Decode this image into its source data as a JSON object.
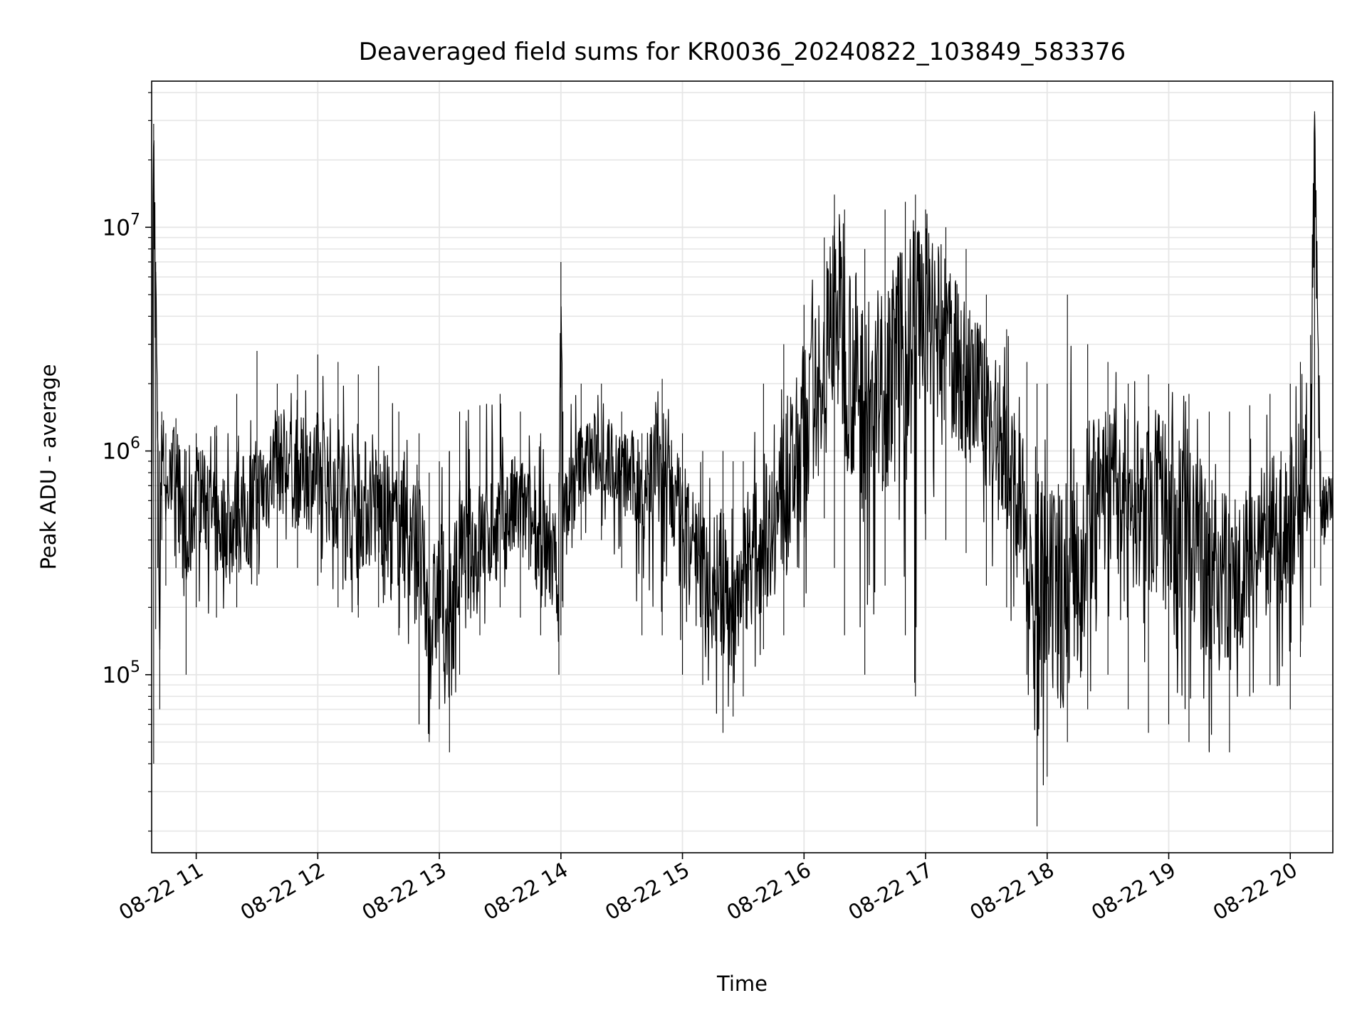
{
  "chart_data": {
    "type": "line",
    "title": "Deaveraged field sums for KR0036_20240822_103849_583376",
    "xlabel": "Time",
    "ylabel": "Peak ADU - average",
    "x_tick_labels": [
      "08-22 11",
      "08-22 12",
      "08-22 13",
      "08-22 14",
      "08-22 15",
      "08-22 16",
      "08-22 17",
      "08-22 18",
      "08-22 19",
      "08-22 20"
    ],
    "x_ticks": [
      "2024-08-22 11:00",
      "2024-08-22 12:00",
      "2024-08-22 13:00",
      "2024-08-22 14:00",
      "2024-08-22 15:00",
      "2024-08-22 16:00",
      "2024-08-22 17:00",
      "2024-08-22 18:00",
      "2024-08-22 19:00",
      "2024-08-22 20:00"
    ],
    "xlim": [
      "2024-08-22 10:38",
      "2024-08-22 20:21"
    ],
    "y_scale": "log",
    "y_major_ticks": [
      100000,
      1000000,
      10000000
    ],
    "y_tick_labels": [
      {
        "base": "10",
        "exp": "5"
      },
      {
        "base": "10",
        "exp": "6"
      },
      {
        "base": "10",
        "exp": "7"
      }
    ],
    "ylim": [
      16000,
      45000000
    ],
    "grid": true,
    "line_color": "#000000",
    "grid_color": "#e6e6e6",
    "series": [
      {
        "x": [
          "2024-08-22 10:38",
          "2024-08-22 10:39",
          "2024-08-22 10:40",
          "2024-08-22 10:41",
          "2024-08-22 10:42",
          "2024-08-22 10:43",
          "2024-08-22 10:45",
          "2024-08-22 10:50",
          "2024-08-22 10:55",
          "2024-08-22 11:00",
          "2024-08-22 11:10",
          "2024-08-22 11:20",
          "2024-08-22 11:30",
          "2024-08-22 11:40",
          "2024-08-22 11:50",
          "2024-08-22 12:00",
          "2024-08-22 12:10",
          "2024-08-22 12:20",
          "2024-08-22 12:30",
          "2024-08-22 12:40",
          "2024-08-22 12:50",
          "2024-08-22 12:55",
          "2024-08-22 13:00",
          "2024-08-22 13:05",
          "2024-08-22 13:10",
          "2024-08-22 13:20",
          "2024-08-22 13:30",
          "2024-08-22 13:40",
          "2024-08-22 13:50",
          "2024-08-22 13:59",
          "2024-08-22 14:00",
          "2024-08-22 14:01",
          "2024-08-22 14:10",
          "2024-08-22 14:20",
          "2024-08-22 14:30",
          "2024-08-22 14:40",
          "2024-08-22 14:50",
          "2024-08-22 15:00",
          "2024-08-22 15:10",
          "2024-08-22 15:20",
          "2024-08-22 15:25",
          "2024-08-22 15:30",
          "2024-08-22 15:40",
          "2024-08-22 15:50",
          "2024-08-22 16:00",
          "2024-08-22 16:10",
          "2024-08-22 16:15",
          "2024-08-22 16:20",
          "2024-08-22 16:30",
          "2024-08-22 16:40",
          "2024-08-22 16:50",
          "2024-08-22 16:55",
          "2024-08-22 17:00",
          "2024-08-22 17:10",
          "2024-08-22 17:20",
          "2024-08-22 17:30",
          "2024-08-22 17:40",
          "2024-08-22 17:50",
          "2024-08-22 17:55",
          "2024-08-22 18:00",
          "2024-08-22 18:10",
          "2024-08-22 18:20",
          "2024-08-22 18:30",
          "2024-08-22 18:40",
          "2024-08-22 18:50",
          "2024-08-22 19:00",
          "2024-08-22 19:10",
          "2024-08-22 19:20",
          "2024-08-22 19:30",
          "2024-08-22 19:40",
          "2024-08-22 19:50",
          "2024-08-22 20:00",
          "2024-08-22 20:05",
          "2024-08-22 20:10",
          "2024-08-22 20:12",
          "2024-08-22 20:15",
          "2024-08-22 20:21"
        ],
        "y": [
          700000,
          29000000,
          7000000,
          900000,
          160000,
          1500000,
          600000,
          1000000,
          300000,
          700000,
          450000,
          500000,
          600000,
          900000,
          800000,
          800000,
          700000,
          600000,
          550000,
          450000,
          350000,
          150000,
          250000,
          200000,
          300000,
          400000,
          500000,
          550000,
          400000,
          300000,
          7000000,
          500000,
          900000,
          1000000,
          800000,
          700000,
          1000000,
          400000,
          300000,
          250000,
          200000,
          300000,
          400000,
          600000,
          1200000,
          2500000,
          5000000,
          3000000,
          1500000,
          2000000,
          2500000,
          3500000,
          4000000,
          3000000,
          2000000,
          1500000,
          1000000,
          400000,
          250000,
          200000,
          250000,
          500000,
          700000,
          600000,
          600000,
          500000,
          400000,
          300000,
          250000,
          350000,
          400000,
          500000,
          600000,
          800000,
          33000000,
          550000,
          600000
        ],
        "lower": [
          170000,
          40000,
          160000,
          300000,
          70000,
          400000,
          250000,
          300000,
          100000,
          200000,
          180000,
          200000,
          250000,
          300000,
          300000,
          250000,
          200000,
          180000,
          200000,
          150000,
          60000,
          50000,
          70000,
          45000,
          100000,
          150000,
          200000,
          180000,
          150000,
          100000,
          150000,
          200000,
          400000,
          400000,
          300000,
          150000,
          150000,
          100000,
          90000,
          55000,
          65000,
          80000,
          130000,
          150000,
          200000,
          500000,
          300000,
          150000,
          100000,
          250000,
          150000,
          80000,
          400000,
          400000,
          350000,
          250000,
          200000,
          100000,
          21000,
          35000,
          50000,
          70000,
          100000,
          70000,
          55000,
          60000,
          50000,
          45000,
          45000,
          80000,
          90000,
          70000,
          120000,
          200000,
          300000,
          250000,
          300000
        ],
        "upper": [
          3000000,
          29000000,
          7000000,
          1500000,
          1000000,
          1500000,
          1200000,
          1400000,
          1000000,
          1200000,
          1300000,
          1800000,
          2800000,
          2000000,
          2200000,
          2700000,
          2500000,
          2200000,
          2400000,
          1500000,
          1200000,
          800000,
          900000,
          1000000,
          1500000,
          1600000,
          1800000,
          1500000,
          1200000,
          800000,
          7000000,
          1500000,
          2000000,
          2000000,
          1500000,
          1200000,
          2100000,
          1200000,
          1000000,
          1000000,
          900000,
          900000,
          2000000,
          3000000,
          4500000,
          9000000,
          14000000,
          12000000,
          8000000,
          12000000,
          13000000,
          14000000,
          12000000,
          10000000,
          8000000,
          5000000,
          3500000,
          2500000,
          2000000,
          2000000,
          5000000,
          3000000,
          2500000,
          2000000,
          2200000,
          2000000,
          1800000,
          1500000,
          1500000,
          1600000,
          1800000,
          2000000,
          2500000,
          3300000,
          33000000,
          1000000,
          800000
        ]
      }
    ]
  }
}
